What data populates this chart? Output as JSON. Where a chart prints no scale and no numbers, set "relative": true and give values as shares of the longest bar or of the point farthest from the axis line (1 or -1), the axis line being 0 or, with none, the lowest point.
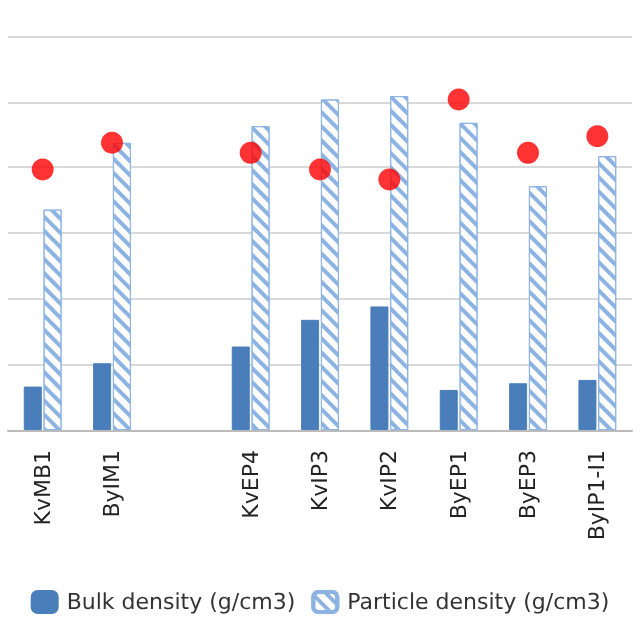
{
  "chart_data": {
    "type": "bar",
    "relative": true,
    "grid": "y",
    "legend": "bottom",
    "categories": [
      "KvMB1",
      "ByIM1",
      null,
      "KvEP4",
      "KvIP3",
      "KvIP2",
      "ByEP1",
      "ByEP3",
      "ByIP1-I1"
    ],
    "series": [
      {
        "name": "Bulk density (g/cm3)",
        "color": "#4a7ebb",
        "values": [
          0.13,
          0.2,
          null,
          0.25,
          0.33,
          0.37,
          0.12,
          0.14,
          0.15
        ]
      },
      {
        "name": "Particle density (g/cm3)",
        "color": "#8db3e2",
        "values": [
          0.66,
          0.86,
          null,
          0.91,
          0.99,
          1,
          0.92,
          0.73,
          0.82
        ]
      },
      {
        "type": "scatter",
        "color": "#ff0000",
        "marker": "circle",
        "values": [
          0.78,
          0.86,
          null,
          0.83,
          0.78,
          0.75,
          0.99,
          0.83,
          0.88
        ]
      }
    ]
  }
}
